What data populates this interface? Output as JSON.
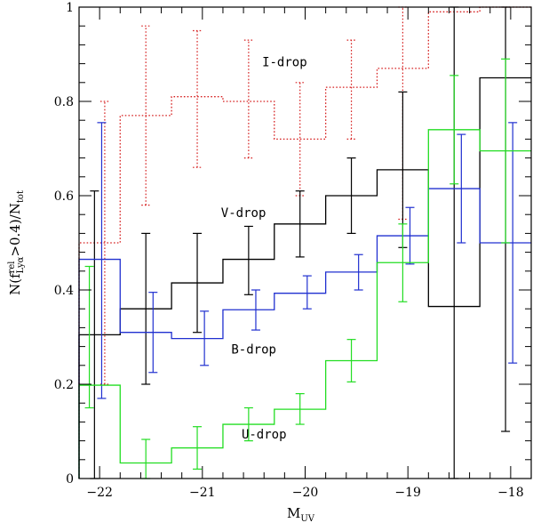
{
  "chart_data": {
    "type": "line",
    "title": "",
    "xlabel": {
      "main": "M",
      "sub": "UV"
    },
    "ylabel": {
      "text": "N(f",
      "sup": "rel",
      "sub": "Lyα",
      "rest": ">0.4)/N",
      "sub2": "tot"
    },
    "xlim": [
      -22.2,
      -17.8
    ],
    "ylim": [
      0,
      1
    ],
    "x_ticks": [
      -22,
      -21,
      -20,
      -19,
      -18
    ],
    "y_ticks": [
      0,
      0.2,
      0.4,
      0.6,
      0.8,
      1
    ],
    "x_tick_labels": [
      "−22",
      "−21",
      "−20",
      "−19",
      "−18"
    ],
    "y_tick_labels": [
      "0",
      "0.2",
      "0.4",
      "0.6",
      "0.8",
      "1"
    ],
    "series": [
      {
        "name": "I-drop",
        "color": "#d62020",
        "dashed": true,
        "label_x": -20.2,
        "label_y": 0.875,
        "bins": [
          {
            "x0": -22.2,
            "x1": -21.8,
            "y": 0.5,
            "err_x": -21.95,
            "lo": 0.2,
            "hi": 0.8
          },
          {
            "x0": -21.8,
            "x1": -21.3,
            "y": 0.77,
            "err_x": -21.55,
            "lo": 0.58,
            "hi": 0.96
          },
          {
            "x0": -21.3,
            "x1": -20.8,
            "y": 0.81,
            "err_x": -21.05,
            "lo": 0.66,
            "hi": 0.95
          },
          {
            "x0": -20.8,
            "x1": -20.3,
            "y": 0.8,
            "err_x": -20.55,
            "lo": 0.68,
            "hi": 0.93
          },
          {
            "x0": -20.3,
            "x1": -19.8,
            "y": 0.72,
            "err_x": -20.05,
            "lo": 0.6,
            "hi": 0.84
          },
          {
            "x0": -19.8,
            "x1": -19.3,
            "y": 0.83,
            "err_x": -19.55,
            "lo": 0.72,
            "hi": 0.93
          },
          {
            "x0": -19.3,
            "x1": -18.8,
            "y": 0.87,
            "err_x": -19.05,
            "lo": 0.55,
            "hi": 1.0
          },
          {
            "x0": -18.8,
            "x1": -18.3,
            "y": 0.99
          },
          {
            "x0": -18.3,
            "x1": -17.8,
            "y": 1.0
          }
        ]
      },
      {
        "name": "V-drop",
        "color": "#000000",
        "dashed": false,
        "label_x": -20.6,
        "label_y": 0.555,
        "bins": [
          {
            "x0": -22.2,
            "x1": -21.8,
            "y": 0.305,
            "err_x": -22.05,
            "lo": 0.0,
            "hi": 0.61
          },
          {
            "x0": -21.8,
            "x1": -21.3,
            "y": 0.36,
            "err_x": -21.55,
            "lo": 0.2,
            "hi": 0.52
          },
          {
            "x0": -21.3,
            "x1": -20.8,
            "y": 0.415,
            "err_x": -21.05,
            "lo": 0.31,
            "hi": 0.52
          },
          {
            "x0": -20.8,
            "x1": -20.3,
            "y": 0.465,
            "err_x": -20.55,
            "lo": 0.39,
            "hi": 0.535
          },
          {
            "x0": -20.3,
            "x1": -19.8,
            "y": 0.54,
            "err_x": -20.05,
            "lo": 0.47,
            "hi": 0.61
          },
          {
            "x0": -19.8,
            "x1": -19.3,
            "y": 0.6,
            "err_x": -19.55,
            "lo": 0.52,
            "hi": 0.68
          },
          {
            "x0": -19.3,
            "x1": -18.8,
            "y": 0.655,
            "err_x": -19.05,
            "lo": 0.49,
            "hi": 0.82
          },
          {
            "x0": -18.8,
            "x1": -18.3,
            "y": 0.365,
            "err_x": -18.55,
            "lo": 0.0,
            "hi": 1.0
          },
          {
            "x0": -18.3,
            "x1": -17.8,
            "y": 0.85,
            "err_x": -18.05,
            "lo": 0.1,
            "hi": 1.0
          }
        ]
      },
      {
        "name": "B-drop",
        "color": "#2030d0",
        "dashed": false,
        "label_x": -20.5,
        "label_y": 0.265,
        "bins": [
          {
            "x0": -22.2,
            "x1": -21.8,
            "y": 0.465,
            "err_x": -21.98,
            "lo": 0.17,
            "hi": 0.755
          },
          {
            "x0": -21.8,
            "x1": -21.3,
            "y": 0.31,
            "err_x": -21.48,
            "lo": 0.225,
            "hi": 0.395
          },
          {
            "x0": -21.3,
            "x1": -20.8,
            "y": 0.297,
            "err_x": -20.98,
            "lo": 0.24,
            "hi": 0.355
          },
          {
            "x0": -20.8,
            "x1": -20.3,
            "y": 0.358,
            "err_x": -20.48,
            "lo": 0.315,
            "hi": 0.4
          },
          {
            "x0": -20.3,
            "x1": -19.8,
            "y": 0.393,
            "err_x": -19.98,
            "lo": 0.36,
            "hi": 0.43
          },
          {
            "x0": -19.8,
            "x1": -19.3,
            "y": 0.438,
            "err_x": -19.48,
            "lo": 0.4,
            "hi": 0.475
          },
          {
            "x0": -19.3,
            "x1": -18.8,
            "y": 0.515,
            "err_x": -18.98,
            "lo": 0.455,
            "hi": 0.575
          },
          {
            "x0": -18.8,
            "x1": -18.3,
            "y": 0.615,
            "err_x": -18.48,
            "lo": 0.5,
            "hi": 0.73
          },
          {
            "x0": -18.3,
            "x1": -17.8,
            "y": 0.5,
            "err_x": -17.98,
            "lo": 0.245,
            "hi": 0.755
          }
        ]
      },
      {
        "name": "U-drop",
        "color": "#22dd22",
        "dashed": false,
        "label_x": -20.4,
        "label_y": 0.085,
        "bins": [
          {
            "x0": -22.2,
            "x1": -21.8,
            "y": 0.198,
            "err_x": -22.1,
            "lo": 0.15,
            "hi": 0.45
          },
          {
            "x0": -21.8,
            "x1": -21.3,
            "y": 0.033,
            "err_x": -21.55,
            "lo": 0.0,
            "hi": 0.083
          },
          {
            "x0": -21.3,
            "x1": -20.8,
            "y": 0.065,
            "err_x": -21.05,
            "lo": 0.02,
            "hi": 0.11
          },
          {
            "x0": -20.8,
            "x1": -20.3,
            "y": 0.115,
            "err_x": -20.55,
            "lo": 0.08,
            "hi": 0.15
          },
          {
            "x0": -20.3,
            "x1": -19.8,
            "y": 0.147,
            "err_x": -20.05,
            "lo": 0.115,
            "hi": 0.18
          },
          {
            "x0": -19.8,
            "x1": -19.3,
            "y": 0.25,
            "err_x": -19.55,
            "lo": 0.205,
            "hi": 0.295
          },
          {
            "x0": -19.3,
            "x1": -18.8,
            "y": 0.458,
            "err_x": -19.05,
            "lo": 0.375,
            "hi": 0.54
          },
          {
            "x0": -18.8,
            "x1": -18.3,
            "y": 0.74,
            "err_x": -18.55,
            "lo": 0.625,
            "hi": 0.855
          },
          {
            "x0": -18.3,
            "x1": -17.8,
            "y": 0.695,
            "err_x": -18.05,
            "lo": 0.5,
            "hi": 0.89
          }
        ]
      }
    ]
  }
}
